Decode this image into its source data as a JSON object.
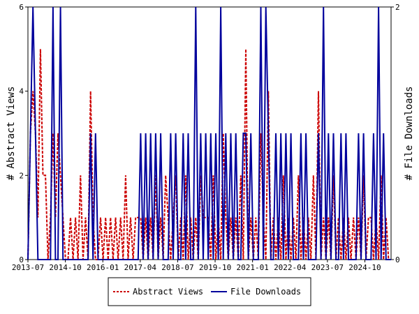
{
  "chart_data": {
    "type": "line",
    "x_ticks": [
      "2013-07",
      "2014-10",
      "2016-01",
      "2017-04",
      "2018-07",
      "2019-10",
      "2021-01",
      "2022-04",
      "2023-07",
      "2024-10"
    ],
    "left_axis": {
      "label": "# Abstract Views",
      "ylim": [
        0,
        6
      ],
      "ticks": [
        "0",
        "2",
        "4",
        "6"
      ]
    },
    "right_axis": {
      "label": "# File Downloads",
      "ylim": [
        0,
        2
      ],
      "ticks": [
        "0",
        "2"
      ]
    },
    "legend": {
      "placement": "bottom"
    },
    "series": [
      {
        "name": "Abstract Views",
        "axis": "left",
        "color": "#cc0000",
        "style": "dashed",
        "x": [
          0,
          1,
          2,
          3,
          4,
          5,
          6,
          7,
          8,
          9,
          10,
          11,
          12,
          13,
          14,
          15,
          16,
          17,
          18,
          19,
          20,
          21,
          22,
          23,
          24,
          25,
          26,
          27,
          28,
          29,
          30,
          31,
          32,
          33,
          34,
          35,
          36,
          37,
          38,
          39,
          40,
          41,
          42,
          43,
          44,
          45,
          46,
          47,
          48,
          49,
          50,
          51,
          52,
          53,
          54,
          55,
          56,
          57,
          58,
          59,
          60,
          61,
          62,
          63,
          64,
          65,
          66,
          67,
          68,
          69,
          70,
          71,
          72,
          73,
          74,
          75,
          76,
          77,
          78,
          79,
          80,
          81,
          82,
          83,
          84,
          85,
          86,
          87,
          88,
          89,
          90,
          91,
          92,
          93,
          94,
          95,
          96,
          97,
          98,
          99,
          100,
          101,
          102,
          103,
          104,
          105,
          106,
          107,
          108,
          109,
          110,
          111,
          112,
          113,
          114,
          115,
          116,
          117,
          118,
          119,
          120,
          121,
          122,
          123,
          124,
          125,
          126,
          127,
          128,
          129,
          130,
          131,
          132,
          133,
          134,
          135,
          136,
          137,
          138,
          139,
          140,
          141,
          142,
          143,
          144,
          145
        ],
        "values": [
          0,
          3,
          4,
          3,
          1,
          5,
          2,
          2,
          0,
          1,
          3,
          1,
          3,
          2,
          1,
          0,
          0,
          1,
          0,
          1,
          0,
          2,
          0,
          1,
          0,
          4,
          1,
          0,
          0,
          1,
          0,
          1,
          0,
          1,
          0,
          1,
          0,
          1,
          0,
          2,
          0,
          1,
          0,
          1,
          1,
          1,
          0,
          1,
          0,
          1,
          0,
          2,
          0,
          1,
          0,
          2,
          1,
          0,
          1,
          2,
          0,
          1,
          0,
          2,
          0,
          1,
          0,
          1,
          0,
          2,
          1,
          1,
          1,
          0,
          2,
          0,
          1,
          0,
          3,
          1,
          0,
          1,
          0,
          1,
          0,
          2,
          0,
          5,
          0,
          1,
          0,
          1,
          0,
          3,
          1,
          0,
          4,
          0,
          1,
          0,
          1,
          0,
          2,
          0,
          1,
          0,
          1,
          0,
          2,
          0,
          1,
          0,
          1,
          0,
          2,
          0,
          4,
          0,
          1,
          0,
          1,
          0,
          2,
          0,
          1,
          0,
          1,
          0,
          1,
          0,
          1,
          0,
          1,
          0,
          2,
          0,
          1,
          1,
          0,
          1,
          0,
          2,
          0,
          1,
          0,
          0
        ]
      },
      {
        "name": "File Downloads",
        "axis": "right",
        "color": "#00009c",
        "style": "solid",
        "x": [
          0,
          1,
          2,
          3,
          4,
          5,
          6,
          7,
          8,
          9,
          10,
          11,
          12,
          13,
          14,
          15,
          16,
          17,
          18,
          19,
          20,
          21,
          22,
          23,
          24,
          25,
          26,
          27,
          28,
          29,
          30,
          31,
          32,
          33,
          34,
          35,
          36,
          37,
          38,
          39,
          40,
          41,
          42,
          43,
          44,
          45,
          46,
          47,
          48,
          49,
          50,
          51,
          52,
          53,
          54,
          55,
          56,
          57,
          58,
          59,
          60,
          61,
          62,
          63,
          64,
          65,
          66,
          67,
          68,
          69,
          70,
          71,
          72,
          73,
          74,
          75,
          76,
          77,
          78,
          79,
          80,
          81,
          82,
          83,
          84,
          85,
          86,
          87,
          88,
          89,
          90,
          91,
          92,
          93,
          94,
          95,
          96,
          97,
          98,
          99,
          100,
          101,
          102,
          103,
          104,
          105,
          106,
          107,
          108,
          109,
          110,
          111,
          112,
          113,
          114,
          115,
          116,
          117,
          118,
          119,
          120,
          121,
          122,
          123,
          124,
          125,
          126,
          127,
          128,
          129,
          130,
          131,
          132,
          133,
          134,
          135,
          136,
          137,
          138,
          139,
          140,
          141,
          142,
          143,
          144,
          145
        ],
        "values": [
          0,
          1,
          2,
          1,
          0,
          0,
          0,
          0,
          0,
          0,
          2,
          0,
          0,
          2,
          0,
          0,
          0,
          0,
          0,
          0,
          0,
          0,
          0,
          0,
          0,
          1,
          0,
          1,
          0,
          0,
          0,
          0,
          0,
          0,
          0,
          0,
          0,
          0,
          0,
          0,
          0,
          0,
          0,
          0,
          0,
          1,
          0,
          1,
          0,
          1,
          0,
          1,
          0,
          1,
          0,
          0,
          0,
          1,
          0,
          1,
          0,
          0,
          1,
          0,
          1,
          0,
          0,
          2,
          0,
          1,
          0,
          1,
          0,
          1,
          0,
          1,
          0,
          2,
          0,
          1,
          0,
          1,
          0,
          1,
          0,
          0,
          1,
          1,
          0,
          1,
          0,
          0,
          0,
          2,
          0,
          2,
          1,
          0,
          0,
          1,
          0,
          1,
          0,
          1,
          0,
          1,
          0,
          0,
          0,
          1,
          0,
          1,
          0,
          0,
          0,
          0,
          1,
          0,
          2,
          0,
          1,
          0,
          1,
          0,
          0,
          1,
          0,
          1,
          0,
          0,
          0,
          0,
          1,
          0,
          1,
          0,
          0,
          0,
          1,
          0,
          2,
          0,
          1,
          0,
          0,
          0
        ]
      }
    ]
  }
}
